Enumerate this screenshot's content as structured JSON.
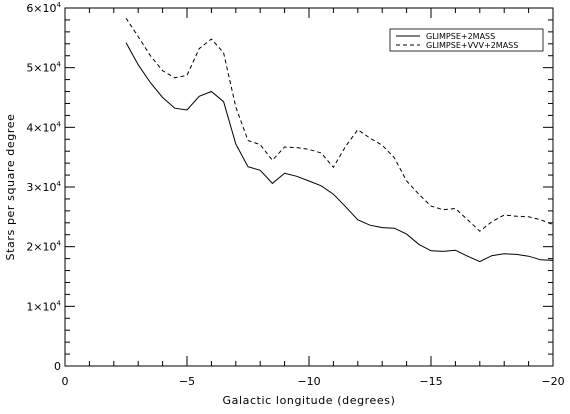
{
  "chart_data": {
    "type": "line",
    "title": "",
    "xlabel": "Galactic longitude (degrees)",
    "ylabel": "Stars per square degree",
    "xlim": [
      0,
      -20
    ],
    "ylim": [
      0,
      60000
    ],
    "x_ticks": [
      0,
      -5,
      -10,
      -15,
      -20
    ],
    "x_tick_labels": [
      "0",
      "−5",
      "−10",
      "−15",
      "−20"
    ],
    "y_ticks": [
      {
        "value": 0,
        "mantissa": "0",
        "exponent": ""
      },
      {
        "value": 10000,
        "mantissa": "1×10",
        "exponent": "4"
      },
      {
        "value": 20000,
        "mantissa": "2×10",
        "exponent": "4"
      },
      {
        "value": 30000,
        "mantissa": "3×10",
        "exponent": "4"
      },
      {
        "value": 40000,
        "mantissa": "4×10",
        "exponent": "4"
      },
      {
        "value": 50000,
        "mantissa": "5×10",
        "exponent": "4"
      },
      {
        "value": 60000,
        "mantissa": "6×10",
        "exponent": "4"
      }
    ],
    "grid": false,
    "legend_position": "top-right",
    "series": [
      {
        "name": "GLIMPSE+2MASS",
        "style": "solid",
        "color": "#000000",
        "x": [
          -2.5,
          -3,
          -3.5,
          -4,
          -4.5,
          -5,
          -5.5,
          -6,
          -6.5,
          -7,
          -7.5,
          -8,
          -8.5,
          -9,
          -9.5,
          -10,
          -10.5,
          -11,
          -11.5,
          -12,
          -12.5,
          -13,
          -13.5,
          -14,
          -14.5,
          -15,
          -15.5,
          -16,
          -16.5,
          -17,
          -17.5,
          -18,
          -18.5,
          -19,
          -19.5,
          -20
        ],
        "y": [
          54200,
          50500,
          47500,
          45000,
          43200,
          42900,
          45200,
          46000,
          44300,
          37200,
          33400,
          32800,
          30600,
          32300,
          31800,
          31000,
          30200,
          28800,
          26700,
          24500,
          23600,
          23200,
          23100,
          22100,
          20400,
          19300,
          19200,
          19400,
          18400,
          17500,
          18500,
          18800,
          18700,
          18400,
          17800,
          17700
        ]
      },
      {
        "name": "GLIMPSE+VVV+2MASS",
        "style": "dashed",
        "color": "#000000",
        "x": [
          -2.5,
          -3,
          -3.5,
          -4,
          -4.5,
          -5,
          -5.5,
          -6,
          -6.5,
          -7,
          -7.5,
          -8,
          -8.5,
          -9,
          -9.5,
          -10,
          -10.5,
          -11,
          -11.5,
          -12,
          -12.5,
          -13,
          -13.5,
          -14,
          -14.5,
          -15,
          -15.5,
          -16,
          -16.5,
          -17,
          -17.5,
          -18,
          -18.5,
          -19,
          -19.5,
          -20
        ],
        "y": [
          58300,
          55200,
          52000,
          49500,
          48300,
          48700,
          53200,
          54800,
          52500,
          43400,
          37800,
          37100,
          34500,
          36700,
          36600,
          36300,
          35700,
          33300,
          36800,
          39600,
          38200,
          37000,
          34900,
          31000,
          28800,
          26800,
          26200,
          26400,
          24500,
          22600,
          24200,
          25300,
          25100,
          25000,
          24500,
          23700
        ]
      }
    ]
  }
}
